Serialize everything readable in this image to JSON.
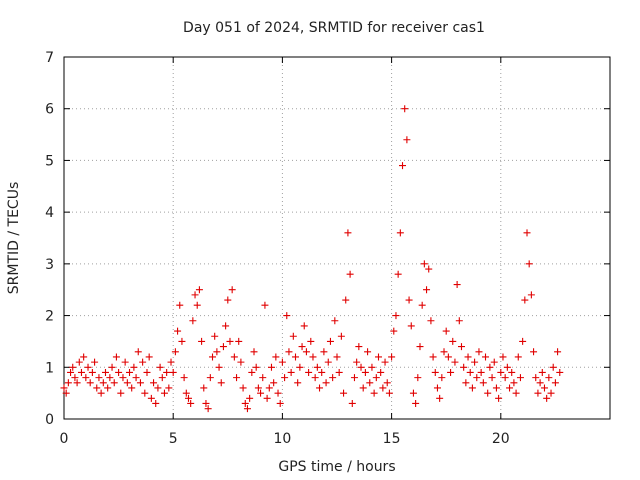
{
  "chart_data": {
    "type": "scatter",
    "title": "Day 051 of 2024, SRMTID for receiver cas1",
    "xlabel": "GPS time / hours",
    "ylabel": "SRMTID / TECUs",
    "xlim": [
      0,
      25
    ],
    "ylim": [
      0,
      7
    ],
    "xticks": [
      0,
      5,
      10,
      15,
      20
    ],
    "yticks": [
      0,
      1,
      2,
      3,
      4,
      5,
      6,
      7
    ],
    "grid": true,
    "marker": "plus",
    "series": [
      {
        "name": "SRMTID",
        "color": "#e00000",
        "points": [
          [
            0.0,
            0.6
          ],
          [
            0.1,
            0.5
          ],
          [
            0.2,
            0.7
          ],
          [
            0.3,
            0.9
          ],
          [
            0.4,
            1.0
          ],
          [
            0.5,
            0.8
          ],
          [
            0.6,
            0.7
          ],
          [
            0.7,
            1.1
          ],
          [
            0.8,
            0.9
          ],
          [
            0.9,
            1.2
          ],
          [
            1.0,
            0.8
          ],
          [
            1.1,
            1.0
          ],
          [
            1.2,
            0.7
          ],
          [
            1.3,
            0.9
          ],
          [
            1.4,
            1.1
          ],
          [
            1.5,
            0.6
          ],
          [
            1.6,
            0.8
          ],
          [
            1.7,
            0.5
          ],
          [
            1.8,
            0.7
          ],
          [
            1.9,
            0.9
          ],
          [
            2.0,
            0.6
          ],
          [
            2.1,
            0.8
          ],
          [
            2.2,
            1.0
          ],
          [
            2.3,
            0.7
          ],
          [
            2.4,
            1.2
          ],
          [
            2.5,
            0.9
          ],
          [
            2.6,
            0.5
          ],
          [
            2.7,
            0.8
          ],
          [
            2.8,
            1.1
          ],
          [
            2.9,
            0.7
          ],
          [
            3.0,
            0.9
          ],
          [
            3.1,
            0.6
          ],
          [
            3.2,
            1.0
          ],
          [
            3.3,
            0.8
          ],
          [
            3.4,
            1.3
          ],
          [
            3.5,
            0.7
          ],
          [
            3.6,
            1.1
          ],
          [
            3.7,
            0.5
          ],
          [
            3.8,
            0.9
          ],
          [
            3.9,
            1.2
          ],
          [
            4.0,
            0.4
          ],
          [
            4.1,
            0.7
          ],
          [
            4.2,
            0.3
          ],
          [
            4.3,
            0.6
          ],
          [
            4.4,
            1.0
          ],
          [
            4.5,
            0.8
          ],
          [
            4.6,
            0.5
          ],
          [
            4.7,
            0.9
          ],
          [
            4.8,
            0.6
          ],
          [
            4.9,
            1.1
          ],
          [
            5.0,
            0.9
          ],
          [
            5.1,
            1.3
          ],
          [
            5.2,
            1.7
          ],
          [
            5.3,
            2.2
          ],
          [
            5.4,
            1.5
          ],
          [
            5.5,
            0.8
          ],
          [
            5.6,
            0.5
          ],
          [
            5.7,
            0.4
          ],
          [
            5.8,
            0.3
          ],
          [
            5.9,
            1.9
          ],
          [
            6.0,
            2.4
          ],
          [
            6.1,
            2.2
          ],
          [
            6.2,
            2.5
          ],
          [
            6.3,
            1.5
          ],
          [
            6.4,
            0.6
          ],
          [
            6.5,
            0.3
          ],
          [
            6.6,
            0.2
          ],
          [
            6.7,
            0.8
          ],
          [
            6.8,
            1.2
          ],
          [
            6.9,
            1.6
          ],
          [
            7.0,
            1.3
          ],
          [
            7.1,
            1.0
          ],
          [
            7.2,
            0.7
          ],
          [
            7.3,
            1.4
          ],
          [
            7.4,
            1.8
          ],
          [
            7.5,
            2.3
          ],
          [
            7.6,
            1.5
          ],
          [
            7.7,
            2.5
          ],
          [
            7.8,
            1.2
          ],
          [
            7.9,
            0.8
          ],
          [
            8.0,
            1.5
          ],
          [
            8.1,
            1.1
          ],
          [
            8.2,
            0.6
          ],
          [
            8.3,
            0.3
          ],
          [
            8.4,
            0.2
          ],
          [
            8.5,
            0.4
          ],
          [
            8.6,
            0.9
          ],
          [
            8.7,
            1.3
          ],
          [
            8.8,
            1.0
          ],
          [
            8.9,
            0.6
          ],
          [
            9.0,
            0.5
          ],
          [
            9.1,
            0.8
          ],
          [
            9.2,
            2.2
          ],
          [
            9.3,
            0.4
          ],
          [
            9.4,
            0.6
          ],
          [
            9.5,
            1.0
          ],
          [
            9.6,
            0.7
          ],
          [
            9.7,
            1.2
          ],
          [
            9.8,
            0.5
          ],
          [
            9.9,
            0.3
          ],
          [
            10.0,
            1.1
          ],
          [
            10.1,
            0.8
          ],
          [
            10.2,
            2.0
          ],
          [
            10.3,
            1.3
          ],
          [
            10.4,
            0.9
          ],
          [
            10.5,
            1.6
          ],
          [
            10.6,
            1.2
          ],
          [
            10.7,
            0.7
          ],
          [
            10.8,
            1.0
          ],
          [
            10.9,
            1.4
          ],
          [
            11.0,
            1.8
          ],
          [
            11.1,
            1.3
          ],
          [
            11.2,
            0.9
          ],
          [
            11.3,
            1.5
          ],
          [
            11.4,
            1.2
          ],
          [
            11.5,
            0.8
          ],
          [
            11.6,
            1.0
          ],
          [
            11.7,
            0.6
          ],
          [
            11.8,
            0.9
          ],
          [
            11.9,
            1.3
          ],
          [
            12.0,
            0.7
          ],
          [
            12.1,
            1.1
          ],
          [
            12.2,
            1.5
          ],
          [
            12.3,
            0.8
          ],
          [
            12.4,
            1.9
          ],
          [
            12.5,
            1.2
          ],
          [
            12.6,
            0.9
          ],
          [
            12.7,
            1.6
          ],
          [
            12.8,
            0.5
          ],
          [
            12.9,
            2.3
          ],
          [
            13.0,
            3.6
          ],
          [
            13.1,
            2.8
          ],
          [
            13.2,
            0.3
          ],
          [
            13.3,
            0.8
          ],
          [
            13.4,
            1.1
          ],
          [
            13.5,
            1.4
          ],
          [
            13.6,
            1.0
          ],
          [
            13.7,
            0.6
          ],
          [
            13.8,
            0.9
          ],
          [
            13.9,
            1.3
          ],
          [
            14.0,
            0.7
          ],
          [
            14.1,
            1.0
          ],
          [
            14.2,
            0.5
          ],
          [
            14.3,
            0.8
          ],
          [
            14.4,
            1.2
          ],
          [
            14.5,
            0.9
          ],
          [
            14.6,
            0.6
          ],
          [
            14.7,
            1.1
          ],
          [
            14.8,
            0.7
          ],
          [
            14.9,
            0.5
          ],
          [
            15.0,
            1.2
          ],
          [
            15.1,
            1.7
          ],
          [
            15.2,
            2.0
          ],
          [
            15.3,
            2.8
          ],
          [
            15.4,
            3.6
          ],
          [
            15.5,
            4.9
          ],
          [
            15.6,
            6.0
          ],
          [
            15.7,
            5.4
          ],
          [
            15.8,
            2.3
          ],
          [
            15.9,
            1.8
          ],
          [
            16.0,
            0.5
          ],
          [
            16.1,
            0.3
          ],
          [
            16.2,
            0.8
          ],
          [
            16.3,
            1.4
          ],
          [
            16.4,
            2.2
          ],
          [
            16.5,
            3.0
          ],
          [
            16.6,
            2.5
          ],
          [
            16.7,
            2.9
          ],
          [
            16.8,
            1.9
          ],
          [
            16.9,
            1.2
          ],
          [
            17.0,
            0.9
          ],
          [
            17.1,
            0.6
          ],
          [
            17.2,
            0.4
          ],
          [
            17.3,
            0.8
          ],
          [
            17.4,
            1.3
          ],
          [
            17.5,
            1.7
          ],
          [
            17.6,
            1.2
          ],
          [
            17.7,
            0.9
          ],
          [
            17.8,
            1.5
          ],
          [
            17.9,
            1.1
          ],
          [
            18.0,
            2.6
          ],
          [
            18.1,
            1.9
          ],
          [
            18.2,
            1.4
          ],
          [
            18.3,
            1.0
          ],
          [
            18.4,
            0.7
          ],
          [
            18.5,
            1.2
          ],
          [
            18.6,
            0.9
          ],
          [
            18.7,
            0.6
          ],
          [
            18.8,
            1.1
          ],
          [
            18.9,
            0.8
          ],
          [
            19.0,
            1.3
          ],
          [
            19.1,
            0.9
          ],
          [
            19.2,
            0.7
          ],
          [
            19.3,
            1.2
          ],
          [
            19.4,
            0.5
          ],
          [
            19.5,
            1.0
          ],
          [
            19.6,
            0.8
          ],
          [
            19.7,
            1.1
          ],
          [
            19.8,
            0.6
          ],
          [
            19.9,
            0.4
          ],
          [
            20.0,
            0.9
          ],
          [
            20.1,
            1.2
          ],
          [
            20.2,
            0.8
          ],
          [
            20.3,
            1.0
          ],
          [
            20.4,
            0.6
          ],
          [
            20.5,
            0.9
          ],
          [
            20.6,
            0.7
          ],
          [
            20.7,
            0.5
          ],
          [
            20.8,
            1.2
          ],
          [
            20.9,
            0.8
          ],
          [
            21.0,
            1.5
          ],
          [
            21.1,
            2.3
          ],
          [
            21.2,
            3.6
          ],
          [
            21.3,
            3.0
          ],
          [
            21.4,
            2.4
          ],
          [
            21.5,
            1.3
          ],
          [
            21.6,
            0.8
          ],
          [
            21.7,
            0.5
          ],
          [
            21.8,
            0.7
          ],
          [
            21.9,
            0.9
          ],
          [
            22.0,
            0.6
          ],
          [
            22.1,
            0.4
          ],
          [
            22.2,
            0.8
          ],
          [
            22.3,
            0.5
          ],
          [
            22.4,
            1.0
          ],
          [
            22.5,
            0.7
          ],
          [
            22.6,
            1.3
          ],
          [
            22.7,
            0.9
          ]
        ]
      }
    ]
  }
}
